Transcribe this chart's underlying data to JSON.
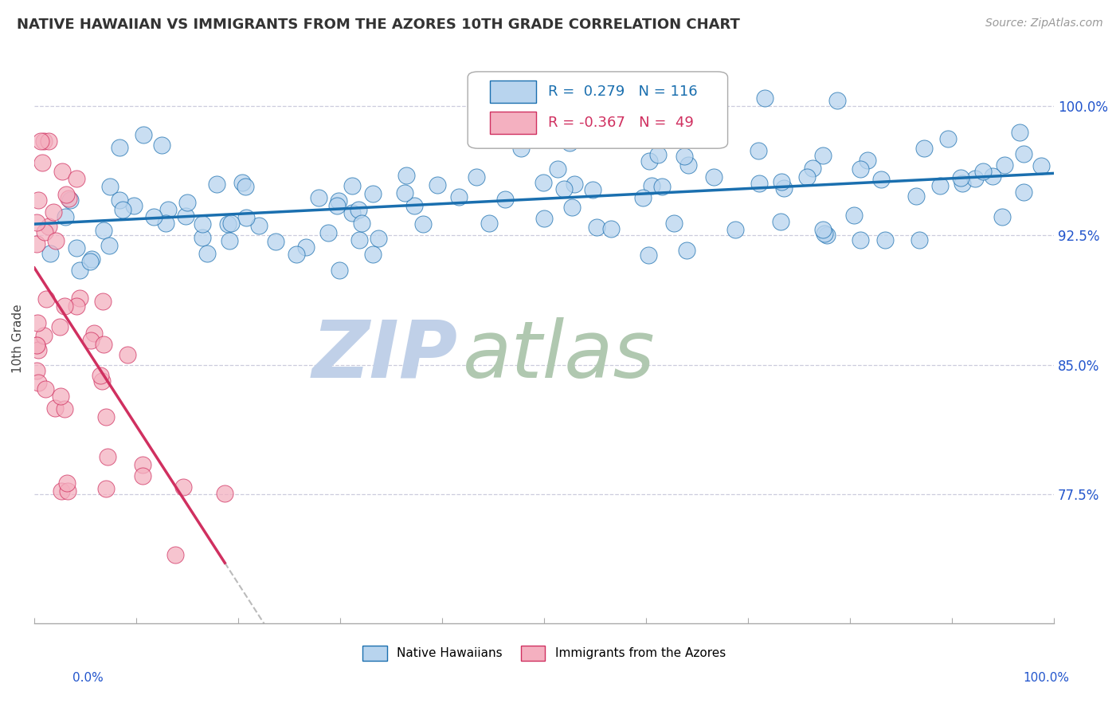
{
  "title": "NATIVE HAWAIIAN VS IMMIGRANTS FROM THE AZORES 10TH GRADE CORRELATION CHART",
  "source_text": "Source: ZipAtlas.com",
  "ylabel": "10th Grade",
  "y_tick_values": [
    0.775,
    0.85,
    0.925,
    1.0
  ],
  "x_range": [
    0.0,
    1.0
  ],
  "y_range": [
    0.7,
    1.03
  ],
  "legend_labels": [
    "Native Hawaiians",
    "Immigrants from the Azores"
  ],
  "blue_R": 0.279,
  "blue_N": 116,
  "pink_R": -0.367,
  "pink_N": 49,
  "blue_color": "#b8d4ee",
  "blue_line_color": "#1a6faf",
  "pink_color": "#f4b0c0",
  "pink_line_color": "#d03060",
  "watermark_zip_color": "#c0d0e8",
  "watermark_atlas_color": "#b0c8b0",
  "background_color": "#ffffff",
  "grid_color": "#ccccdd",
  "right_tick_color": "#2255cc",
  "blue_seed": 42,
  "pink_seed": 99
}
